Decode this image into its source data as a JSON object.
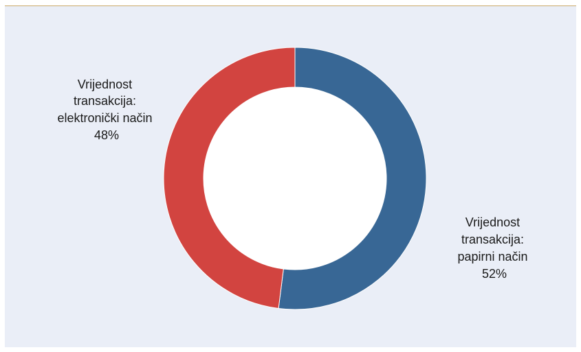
{
  "chart_data": {
    "type": "pie",
    "style": "donut",
    "slices": [
      {
        "label_lines": [
          "Vrijednost",
          "transakcija:",
          "papirni način"
        ],
        "value": 52,
        "value_label": "52%",
        "color": "#386795"
      },
      {
        "label_lines": [
          "Vrijednost",
          "transakcija:",
          "elektronički način"
        ],
        "value": 48,
        "value_label": "48%",
        "color": "#d24440"
      }
    ],
    "start": "top",
    "direction": "clockwise",
    "legend": "none"
  }
}
